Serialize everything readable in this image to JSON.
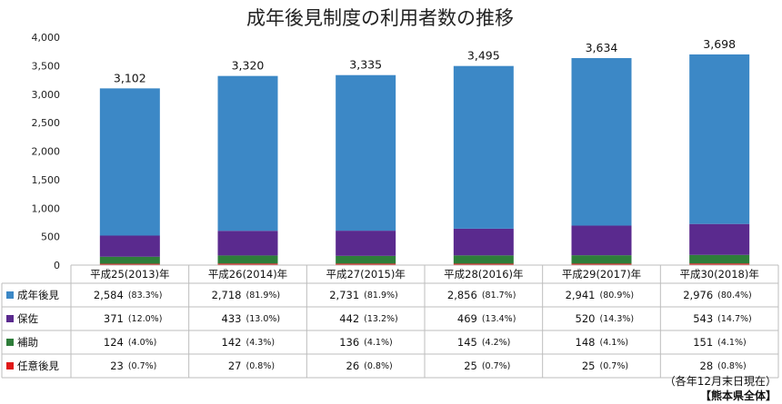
{
  "title": "成年後見制度の利用者数の推移",
  "note_line1": "（各年12月末日現在）",
  "note_line2": "【熊本県全体】",
  "colors": {
    "成年後見": "#3c88c6",
    "保佐": "#5a2a8e",
    "補助": "#2e7d3a",
    "任意後見": "#e01818"
  },
  "chart_data": {
    "type": "bar",
    "stacked": true,
    "title": "成年後見制度の利用者数の推移",
    "categories": [
      "平成25(2013)年",
      "平成26(2014)年",
      "平成27(2015)年",
      "平成28(2016)年",
      "平成29(2017)年",
      "平成30(2018)年"
    ],
    "ylim": [
      0,
      4000
    ],
    "yticks": [
      "0",
      "500",
      "1,000",
      "1,500",
      "2,000",
      "2,500",
      "3,000",
      "3,500",
      "4,000"
    ],
    "grid": false,
    "legend": "data-table",
    "totals": [
      3102,
      3320,
      3335,
      3495,
      3634,
      3698
    ],
    "total_labels": [
      "3,102",
      "3,320",
      "3,335",
      "3,495",
      "3,634",
      "3,698"
    ],
    "series": [
      {
        "name": "任意後見",
        "values": [
          23,
          27,
          26,
          25,
          25,
          28
        ],
        "labels": [
          "23",
          "27",
          "26",
          "25",
          "25",
          "28"
        ],
        "percents": [
          "(0.7%)",
          "(0.8%)",
          "(0.8%)",
          "(0.7%)",
          "(0.7%)",
          "(0.8%)"
        ]
      },
      {
        "name": "補助",
        "values": [
          124,
          142,
          136,
          145,
          148,
          151
        ],
        "labels": [
          "124",
          "142",
          "136",
          "145",
          "148",
          "151"
        ],
        "percents": [
          "(4.0%)",
          "(4.3%)",
          "(4.1%)",
          "(4.2%)",
          "(4.1%)",
          "(4.1%)"
        ]
      },
      {
        "name": "保佐",
        "values": [
          371,
          433,
          442,
          469,
          520,
          543
        ],
        "labels": [
          "371",
          "433",
          "442",
          "469",
          "520",
          "543"
        ],
        "percents": [
          "(12.0%)",
          "(13.0%)",
          "(13.2%)",
          "(13.4%)",
          "(14.3%)",
          "(14.7%)"
        ]
      },
      {
        "name": "成年後見",
        "values": [
          2584,
          2718,
          2731,
          2856,
          2941,
          2976
        ],
        "labels": [
          "2,584",
          "2,718",
          "2,731",
          "2,856",
          "2,941",
          "2,976"
        ],
        "percents": [
          "(83.3%)",
          "(81.9%)",
          "(81.9%)",
          "(81.7%)",
          "(80.9%)",
          "(80.4%)"
        ]
      }
    ],
    "table_row_order": [
      "成年後見",
      "保佐",
      "補助",
      "任意後見"
    ]
  }
}
